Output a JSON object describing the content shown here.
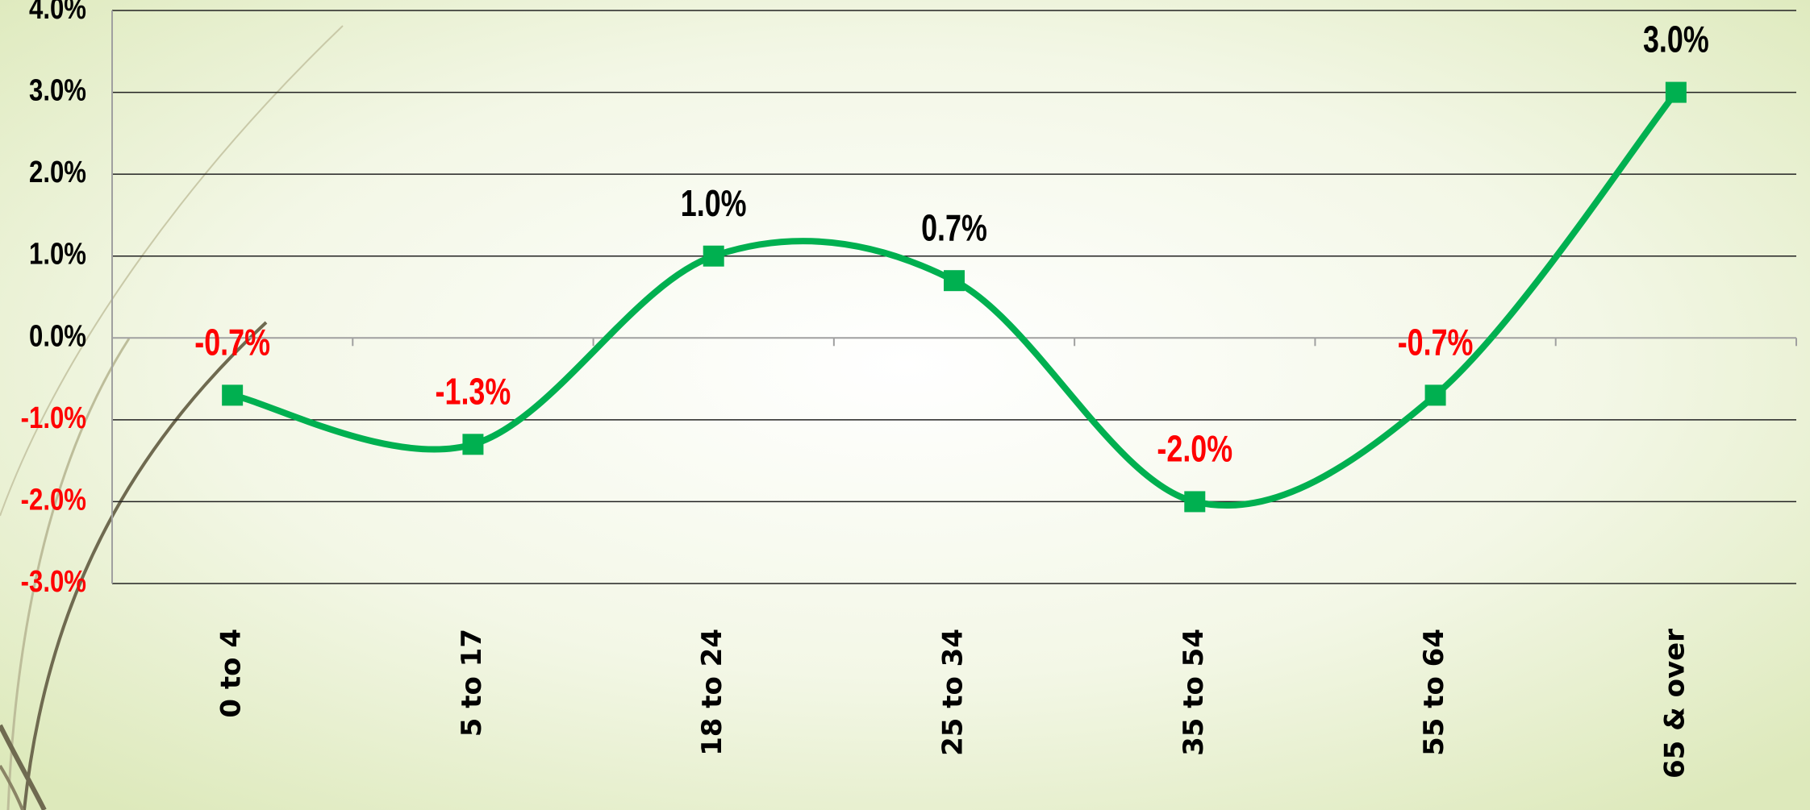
{
  "chart_data": {
    "type": "line",
    "categories": [
      "0 to 4",
      "5 to 17",
      "18 to 24",
      "25 to 34",
      "35 to 54",
      "55 to 64",
      "65 & over"
    ],
    "series": [
      {
        "color": "#00b050",
        "values": [
          -0.7,
          -1.3,
          1.0,
          0.7,
          -2.0,
          -0.7,
          3.0
        ],
        "value_labels": [
          "-0.7%",
          "-1.3%",
          "1.0%",
          "0.7%",
          "-2.0%",
          "-0.7%",
          "3.0%"
        ]
      }
    ],
    "ylim": [
      -3,
      4
    ],
    "yticks": [
      {
        "value": -3,
        "label": "-3.0%"
      },
      {
        "value": -2,
        "label": "-2.0%"
      },
      {
        "value": -1,
        "label": "-1.0%"
      },
      {
        "value": 0,
        "label": "0.0%"
      },
      {
        "value": 1,
        "label": "1.0%"
      },
      {
        "value": 2,
        "label": "2.0%"
      },
      {
        "value": 3,
        "label": "3.0%"
      },
      {
        "value": 4,
        "label": "4.0%"
      }
    ],
    "grid": true,
    "smooth": true
  }
}
